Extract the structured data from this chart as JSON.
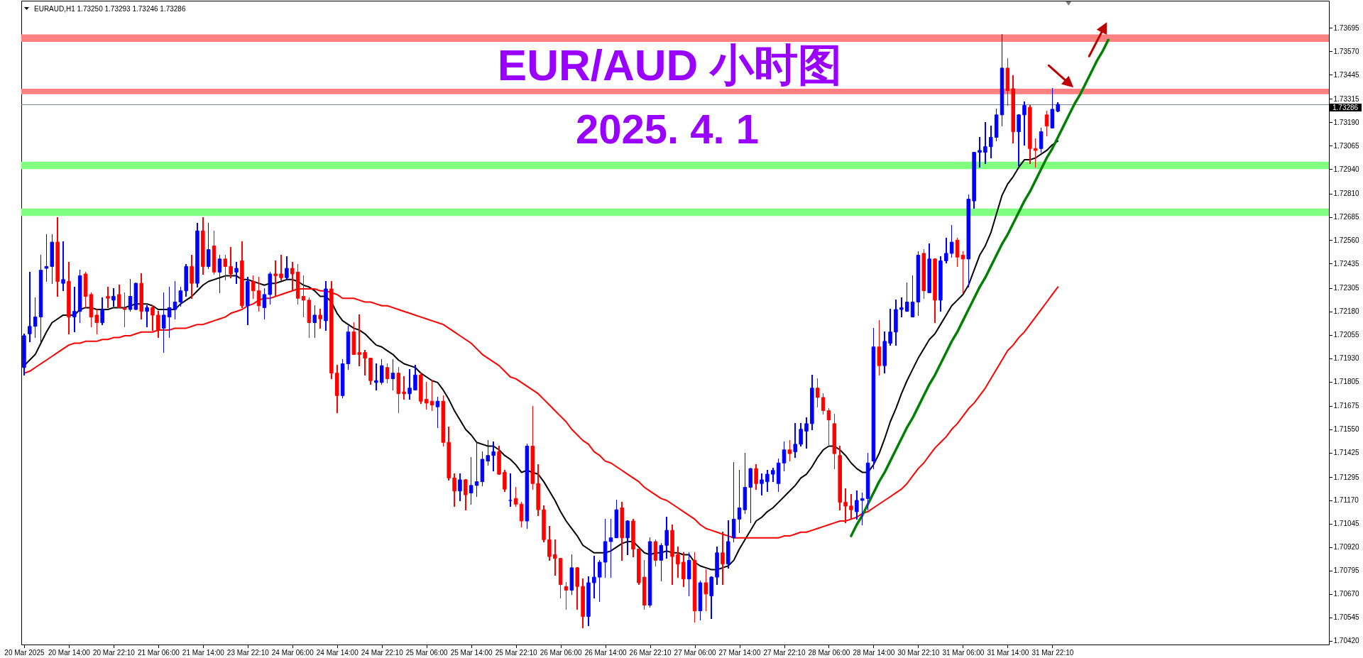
{
  "chart_data": {
    "type": "candlestick",
    "title": "EUR/AUD 小时图",
    "subtitle": "2025. 4. 1",
    "annotations": [
      "EURAUD,H1  1.73250 1.73293 1.73246 1.73286"
    ],
    "categories": [
      "20 Mar 2025",
      null,
      null,
      null,
      null,
      null,
      null,
      null,
      "20 Mar 14:00",
      null,
      null,
      null,
      null,
      null,
      null,
      null,
      "20 Mar 22:10",
      null,
      null,
      null,
      null,
      null,
      null,
      null,
      "21 Mar 06:00",
      null,
      null,
      null,
      null,
      null,
      null,
      null,
      "21 Mar 14:00",
      null,
      null,
      null,
      null,
      null,
      null,
      null,
      "23 Mar 22:10",
      null,
      null,
      null,
      null,
      null,
      null,
      null,
      "24 Mar 06:00",
      null,
      null,
      null,
      null,
      null,
      null,
      null,
      "24 Mar 14:00",
      null,
      null,
      null,
      null,
      null,
      null,
      null,
      "24 Mar 22:10",
      null,
      null,
      null,
      null,
      null,
      null,
      null,
      "25 Mar 06:00",
      null,
      null,
      null,
      null,
      null,
      null,
      null,
      "25 Mar 14:00",
      null,
      null,
      null,
      null,
      null,
      null,
      null,
      "25 Mar 22:10",
      null,
      null,
      null,
      null,
      null,
      null,
      null,
      "26 Mar 06:00",
      null,
      null,
      null,
      null,
      null,
      null,
      null,
      "26 Mar 14:00",
      null,
      null,
      null,
      null,
      null,
      null,
      null,
      "26 Mar 22:10",
      null,
      null,
      null,
      null,
      null,
      null,
      null,
      "27 Mar 06:00",
      null,
      null,
      null,
      null,
      null,
      null,
      null,
      "27 Mar 14:00",
      null,
      null,
      null,
      null,
      null,
      null,
      null,
      "27 Mar 22:10",
      null,
      null,
      null,
      null,
      null,
      null,
      null,
      "28 Mar 06:00",
      null,
      null,
      null,
      null,
      null,
      null,
      null,
      "28 Mar 14:00",
      null,
      null,
      null,
      null,
      null,
      null,
      null,
      "30 Mar 22:10",
      null,
      null,
      null,
      null,
      null,
      null,
      null,
      "31 Mar 06:00",
      null,
      null,
      null,
      null,
      null,
      null,
      null,
      "31 Mar 14:00",
      null,
      null,
      null,
      null,
      null,
      null,
      null,
      "31 Mar 22:10",
      null,
      null,
      null,
      null,
      null,
      null,
      null,
      null,
      null,
      null,
      null,
      null,
      null,
      null,
      null,
      null,
      null,
      null,
      null,
      null,
      null,
      null,
      null,
      null,
      null,
      null,
      null,
      null,
      null,
      null,
      null,
      null,
      null,
      null,
      null,
      null,
      null,
      null,
      null,
      null,
      null,
      null,
      null,
      null,
      null,
      null,
      null,
      null,
      null
    ],
    "ohlc": [
      [
        1.7188,
        1.7206,
        1.7184,
        1.7205
      ],
      [
        1.7206,
        1.7239,
        1.7202,
        1.721
      ],
      [
        1.721,
        1.7225,
        1.7204,
        1.7215
      ],
      [
        1.7215,
        1.7248,
        1.7201,
        1.724
      ],
      [
        1.7241,
        1.7259,
        1.7234,
        1.7242
      ],
      [
        1.7242,
        1.7259,
        1.7233,
        1.7255
      ],
      [
        1.7255,
        1.7268,
        1.7226,
        1.7234
      ],
      [
        1.7233,
        1.7255,
        1.7229,
        1.7235
      ],
      [
        1.7234,
        1.7244,
        1.7206,
        1.7215
      ],
      [
        1.7215,
        1.7231,
        1.7207,
        1.7218
      ],
      [
        1.7218,
        1.724,
        1.7212,
        1.7237
      ],
      [
        1.7238,
        1.7239,
        1.722,
        1.7226
      ],
      [
        1.7227,
        1.7228,
        1.721,
        1.7215
      ],
      [
        1.7216,
        1.7219,
        1.7206,
        1.7212
      ],
      [
        1.7212,
        1.7225,
        1.7211,
        1.7219
      ],
      [
        1.7226,
        1.7231,
        1.722,
        1.7225
      ],
      [
        1.7224,
        1.723,
        1.7221,
        1.7226
      ],
      [
        1.7227,
        1.7232,
        1.722,
        1.722
      ],
      [
        1.722,
        1.7228,
        1.721,
        1.7219
      ],
      [
        1.7219,
        1.7235,
        1.7218,
        1.7226
      ],
      [
        1.7219,
        1.7233,
        1.7219,
        1.7233
      ],
      [
        1.7233,
        1.7238,
        1.7214,
        1.7218
      ],
      [
        1.7218,
        1.7221,
        1.721,
        1.722
      ],
      [
        1.722,
        1.7221,
        1.7208,
        1.7216
      ],
      [
        1.7216,
        1.7218,
        1.7204,
        1.7208
      ],
      [
        1.7209,
        1.7228,
        1.7196,
        1.7216
      ],
      [
        1.7215,
        1.7231,
        1.7204,
        1.722
      ],
      [
        1.7219,
        1.7234,
        1.7214,
        1.7223
      ],
      [
        1.7223,
        1.7231,
        1.7221,
        1.7229
      ],
      [
        1.7229,
        1.7243,
        1.7226,
        1.7242
      ],
      [
        1.7242,
        1.7248,
        1.7225,
        1.7233
      ],
      [
        1.7233,
        1.7265,
        1.7231,
        1.7261
      ],
      [
        1.7261,
        1.7268,
        1.7238,
        1.7242
      ],
      [
        1.7242,
        1.7265,
        1.7241,
        1.7251
      ],
      [
        1.7253,
        1.7261,
        1.7238,
        1.7239
      ],
      [
        1.7239,
        1.7248,
        1.7228,
        1.7246
      ],
      [
        1.7246,
        1.7248,
        1.7235,
        1.7242
      ],
      [
        1.7242,
        1.7252,
        1.7236,
        1.7238
      ],
      [
        1.7239,
        1.7244,
        1.7233,
        1.7241
      ],
      [
        1.7245,
        1.7255,
        1.722,
        1.7221
      ],
      [
        1.7221,
        1.7236,
        1.7211,
        1.7234
      ],
      [
        1.7234,
        1.7237,
        1.7225,
        1.7229
      ],
      [
        1.7229,
        1.7236,
        1.7218,
        1.7221
      ],
      [
        1.722,
        1.723,
        1.7214,
        1.7227
      ],
      [
        1.7227,
        1.7239,
        1.7222,
        1.7238
      ],
      [
        1.7238,
        1.7245,
        1.7226,
        1.7237
      ],
      [
        1.7238,
        1.7248,
        1.7235,
        1.7236
      ],
      [
        1.7236,
        1.7247,
        1.7235,
        1.7241
      ],
      [
        1.7241,
        1.7244,
        1.7229,
        1.7238
      ],
      [
        1.7239,
        1.7243,
        1.7222,
        1.7225
      ],
      [
        1.7226,
        1.7237,
        1.7215,
        1.7224
      ],
      [
        1.7224,
        1.7225,
        1.7204,
        1.7212
      ],
      [
        1.7212,
        1.7221,
        1.7204,
        1.7216
      ],
      [
        1.7216,
        1.7219,
        1.7209,
        1.7214
      ],
      [
        1.7213,
        1.7234,
        1.7208,
        1.723
      ],
      [
        1.723,
        1.7234,
        1.7182,
        1.7185
      ],
      [
        1.7185,
        1.7189,
        1.7164,
        1.7173
      ],
      [
        1.7173,
        1.7192,
        1.7172,
        1.719
      ],
      [
        1.719,
        1.721,
        1.7187,
        1.7207
      ],
      [
        1.7207,
        1.7212,
        1.7195,
        1.7195
      ],
      [
        1.7196,
        1.7216,
        1.7189,
        1.7195
      ],
      [
        1.7196,
        1.7197,
        1.7184,
        1.7193
      ],
      [
        1.7193,
        1.7193,
        1.7179,
        1.7181
      ],
      [
        1.718,
        1.719,
        1.7176,
        1.7181
      ],
      [
        1.718,
        1.7192,
        1.7179,
        1.7189
      ],
      [
        1.7188,
        1.719,
        1.718,
        1.7182
      ],
      [
        1.7182,
        1.7192,
        1.7176,
        1.7185
      ],
      [
        1.7185,
        1.7188,
        1.7164,
        1.7174
      ],
      [
        1.7175,
        1.7183,
        1.7171,
        1.7174
      ],
      [
        1.7174,
        1.7187,
        1.7171,
        1.7177
      ],
      [
        1.7176,
        1.7189,
        1.7176,
        1.7184
      ],
      [
        1.7184,
        1.7185,
        1.7169,
        1.717
      ],
      [
        1.7171,
        1.718,
        1.7166,
        1.7169
      ],
      [
        1.717,
        1.7181,
        1.7165,
        1.7168
      ],
      [
        1.7167,
        1.7172,
        1.7156,
        1.717
      ],
      [
        1.717,
        1.7173,
        1.7146,
        1.7148
      ],
      [
        1.7148,
        1.7156,
        1.7128,
        1.7129
      ],
      [
        1.7129,
        1.7131,
        1.7114,
        1.7122
      ],
      [
        1.7122,
        1.7131,
        1.7117,
        1.7128
      ],
      [
        1.7128,
        1.7128,
        1.7112,
        1.712
      ],
      [
        1.7121,
        1.714,
        1.7115,
        1.7125
      ],
      [
        1.7125,
        1.7148,
        1.7119,
        1.7127
      ],
      [
        1.7127,
        1.7143,
        1.7125,
        1.7139
      ],
      [
        1.7138,
        1.7149,
        1.7136,
        1.7141
      ],
      [
        1.7141,
        1.7148,
        1.7133,
        1.7143
      ],
      [
        1.7143,
        1.7146,
        1.7131,
        1.7131
      ],
      [
        1.7132,
        1.7133,
        1.7122,
        1.7123
      ],
      [
        1.7117,
        1.7131,
        1.7114,
        1.7117
      ],
      [
        1.7118,
        1.7124,
        1.7114,
        1.7115
      ],
      [
        1.7115,
        1.7116,
        1.7103,
        1.7106
      ],
      [
        1.7106,
        1.7147,
        1.7102,
        1.7146
      ],
      [
        1.7146,
        1.7167,
        1.7123,
        1.7126
      ],
      [
        1.7126,
        1.7136,
        1.7109,
        1.7112
      ],
      [
        1.7112,
        1.7114,
        1.7095,
        1.7096
      ],
      [
        1.7096,
        1.7103,
        1.7085,
        1.7087
      ],
      [
        1.7088,
        1.7096,
        1.7077,
        1.7086
      ],
      [
        1.7086,
        1.7086,
        1.7065,
        1.7072
      ],
      [
        1.7071,
        1.7073,
        1.7059,
        1.7069
      ],
      [
        1.7069,
        1.7088,
        1.7067,
        1.7081
      ],
      [
        1.7081,
        1.7081,
        1.7059,
        1.7071
      ],
      [
        1.7071,
        1.7075,
        1.7049,
        1.7055
      ],
      [
        1.7055,
        1.7076,
        1.705,
        1.7073
      ],
      [
        1.7073,
        1.7087,
        1.7065,
        1.7076
      ],
      [
        1.7076,
        1.7085,
        1.7063,
        1.7084
      ],
      [
        1.7084,
        1.7107,
        1.7076,
        1.7095
      ],
      [
        1.7095,
        1.7107,
        1.7076,
        1.7097
      ],
      [
        1.7097,
        1.7117,
        1.7097,
        1.7112
      ],
      [
        1.7113,
        1.7116,
        1.7085,
        1.7097
      ],
      [
        1.7097,
        1.7106,
        1.7088,
        1.7106
      ],
      [
        1.7106,
        1.7107,
        1.7087,
        1.7091
      ],
      [
        1.7091,
        1.7091,
        1.7072,
        1.7073
      ],
      [
        1.7076,
        1.7085,
        1.7059,
        1.7061
      ],
      [
        1.7061,
        1.7097,
        1.706,
        1.7095
      ],
      [
        1.7095,
        1.7096,
        1.7082,
        1.7085
      ],
      [
        1.7085,
        1.7094,
        1.7074,
        1.7093
      ],
      [
        1.7093,
        1.7108,
        1.7086,
        1.7101
      ],
      [
        1.7101,
        1.7104,
        1.7072,
        1.7087
      ],
      [
        1.7088,
        1.7092,
        1.7076,
        1.7083
      ],
      [
        1.7084,
        1.7089,
        1.7071,
        1.7075
      ],
      [
        1.7075,
        1.7089,
        1.7066,
        1.7085
      ],
      [
        1.7085,
        1.7089,
        1.7052,
        1.7058
      ],
      [
        1.7058,
        1.7074,
        1.7053,
        1.7073
      ],
      [
        1.7073,
        1.708,
        1.7058,
        1.7067
      ],
      [
        1.7066,
        1.7076,
        1.7054,
        1.7076
      ],
      [
        1.7076,
        1.7092,
        1.7072,
        1.7089
      ],
      [
        1.7089,
        1.71,
        1.7072,
        1.7083
      ],
      [
        1.7083,
        1.7106,
        1.7081,
        1.7095
      ],
      [
        1.7097,
        1.7137,
        1.7095,
        1.7107
      ],
      [
        1.7107,
        1.7133,
        1.71,
        1.7113
      ],
      [
        1.7112,
        1.7142,
        1.711,
        1.7124
      ],
      [
        1.7124,
        1.7134,
        1.7105,
        1.7134
      ],
      [
        1.7134,
        1.7136,
        1.7123,
        1.7126
      ],
      [
        1.7126,
        1.7131,
        1.712,
        1.7128
      ],
      [
        1.7127,
        1.7133,
        1.7122,
        1.7131
      ],
      [
        1.7131,
        1.7134,
        1.7127,
        1.7133
      ],
      [
        1.7126,
        1.7139,
        1.7122,
        1.7137
      ],
      [
        1.7137,
        1.7148,
        1.7133,
        1.7144
      ],
      [
        1.7144,
        1.7149,
        1.7138,
        1.7142
      ],
      [
        1.7143,
        1.7158,
        1.714,
        1.7147
      ],
      [
        1.7147,
        1.7158,
        1.7146,
        1.7155
      ],
      [
        1.7154,
        1.7161,
        1.7145,
        1.7158
      ],
      [
        1.7158,
        1.7184,
        1.7155,
        1.7177
      ],
      [
        1.7177,
        1.7182,
        1.7167,
        1.7172
      ],
      [
        1.7172,
        1.7174,
        1.7163,
        1.7165
      ],
      [
        1.7165,
        1.7166,
        1.7147,
        1.716
      ],
      [
        1.7158,
        1.7163,
        1.7134,
        1.7142
      ],
      [
        1.7141,
        1.7146,
        1.7112,
        1.7116
      ],
      [
        1.7116,
        1.7123,
        1.7105,
        1.7114
      ],
      [
        1.7114,
        1.712,
        1.7107,
        1.7112
      ],
      [
        1.7111,
        1.7122,
        1.7107,
        1.7117
      ],
      [
        1.7117,
        1.7121,
        1.7104,
        1.7118
      ],
      [
        1.7118,
        1.7142,
        1.7112,
        1.7137
      ],
      [
        1.7138,
        1.7209,
        1.7134,
        1.7199
      ],
      [
        1.7199,
        1.7213,
        1.7184,
        1.7189
      ],
      [
        1.7189,
        1.7207,
        1.7185,
        1.7202
      ],
      [
        1.7201,
        1.7219,
        1.72,
        1.7207
      ],
      [
        1.7207,
        1.7224,
        1.72,
        1.7219
      ],
      [
        1.7219,
        1.7225,
        1.7215,
        1.722
      ],
      [
        1.7218,
        1.7233,
        1.7218,
        1.7223
      ],
      [
        1.7215,
        1.7237,
        1.7215,
        1.7223
      ],
      [
        1.7223,
        1.725,
        1.7216,
        1.7248
      ],
      [
        1.7249,
        1.7251,
        1.7225,
        1.7229
      ],
      [
        1.7228,
        1.7254,
        1.7228,
        1.7246
      ],
      [
        1.7246,
        1.7246,
        1.7212,
        1.7224
      ],
      [
        1.7224,
        1.7247,
        1.7218,
        1.7245
      ],
      [
        1.7245,
        1.7257,
        1.7244,
        1.7249
      ],
      [
        1.7249,
        1.7264,
        1.7247,
        1.7255
      ],
      [
        1.7256,
        1.7257,
        1.7242,
        1.7247
      ],
      [
        1.7248,
        1.725,
        1.7228,
        1.7246
      ],
      [
        1.7246,
        1.728,
        1.7231,
        1.7278
      ],
      [
        1.7277,
        1.7303,
        1.7273,
        1.7303
      ],
      [
        1.7303,
        1.7311,
        1.7295,
        1.7304
      ],
      [
        1.7303,
        1.7319,
        1.7297,
        1.7306
      ],
      [
        1.7306,
        1.7317,
        1.73,
        1.7311
      ],
      [
        1.7311,
        1.7326,
        1.7309,
        1.7323
      ],
      [
        1.7323,
        1.7366,
        1.7317,
        1.7348
      ],
      [
        1.7348,
        1.7353,
        1.7328,
        1.7336
      ],
      [
        1.7337,
        1.7344,
        1.7308,
        1.7314
      ],
      [
        1.7314,
        1.7323,
        1.7296,
        1.7323
      ],
      [
        1.7323,
        1.733,
        1.7307,
        1.7328
      ],
      [
        1.7327,
        1.7328,
        1.7297,
        1.7305
      ],
      [
        1.7305,
        1.731,
        1.7295,
        1.7304
      ],
      [
        1.7305,
        1.7316,
        1.7303,
        1.7314
      ],
      [
        1.7323,
        1.7325,
        1.7312,
        1.7317
      ],
      [
        1.7316,
        1.7337,
        1.7316,
        1.7326
      ],
      [
        1.7325,
        1.73293,
        1.73246,
        1.73286
      ],
      null,
      null,
      null,
      null,
      null,
      null,
      null,
      null,
      null,
      null,
      null,
      null,
      null,
      null,
      null,
      null,
      null,
      null,
      null,
      null,
      null,
      null,
      null,
      null,
      null,
      null,
      null,
      null,
      null,
      null,
      null,
      null,
      null,
      null,
      null,
      null,
      null,
      null,
      null,
      null,
      null,
      null,
      null,
      null,
      null,
      null,
      null,
      null
    ],
    "colors": [
      "#0000ff",
      "#0000ff",
      "#0000ff",
      "#0000ff",
      "#0000ff",
      "#0000ff",
      "#ff0000",
      "#0000ff",
      "#ff0000",
      "#0000ff",
      "#0000ff",
      "#ff0000",
      "#ff0000",
      "#ff0000",
      "#0000ff",
      "#ff0000",
      "#0000ff",
      "#ff0000",
      "#ff0000",
      "#0000ff",
      "#0000ff",
      "#ff0000",
      "#0000ff",
      "#ff0000",
      "#ff0000",
      "#0000ff",
      "#0000ff",
      "#0000ff",
      "#0000ff",
      "#0000ff",
      "#ff0000",
      "#0000ff",
      "#ff0000",
      "#0000ff",
      "#ff0000",
      "#0000ff",
      "#ff0000",
      "#ff0000",
      "#0000ff",
      "#ff0000",
      "#0000ff",
      "#ff0000",
      "#ff0000",
      "#0000ff",
      "#0000ff",
      "#ff0000",
      "#ff0000",
      "#0000ff",
      "#ff0000",
      "#ff0000",
      "#ff0000",
      "#ff0000",
      "#0000ff",
      "#ff0000",
      "#0000ff",
      "#ff0000",
      "#ff0000",
      "#0000ff",
      "#0000ff",
      "#ff0000",
      "#ff0000",
      "#ff0000",
      "#ff0000",
      "#0000ff",
      "#0000ff",
      "#ff0000",
      "#0000ff",
      "#ff0000",
      "#ff0000",
      "#0000ff",
      "#0000ff",
      "#ff0000",
      "#ff0000",
      "#ff0000",
      "#0000ff",
      "#ff0000",
      "#ff0000",
      "#ff0000",
      "#0000ff",
      "#ff0000",
      "#0000ff",
      "#0000ff",
      "#0000ff",
      "#0000ff",
      "#0000ff",
      "#ff0000",
      "#ff0000",
      "#0000ff",
      "#ff0000",
      "#ff0000",
      "#0000ff",
      "#ff0000",
      "#ff0000",
      "#ff0000",
      "#ff0000",
      "#ff0000",
      "#ff0000",
      "#ff0000",
      "#0000ff",
      "#ff0000",
      "#ff0000",
      "#0000ff",
      "#0000ff",
      "#0000ff",
      "#0000ff",
      "#0000ff",
      "#0000ff",
      "#ff0000",
      "#0000ff",
      "#ff0000",
      "#ff0000",
      "#ff0000",
      "#0000ff",
      "#ff0000",
      "#0000ff",
      "#0000ff",
      "#ff0000",
      "#ff0000",
      "#ff0000",
      "#0000ff",
      "#ff0000",
      "#0000ff",
      "#ff0000",
      "#0000ff",
      "#0000ff",
      "#ff0000",
      "#0000ff",
      "#0000ff",
      "#0000ff",
      "#0000ff",
      "#0000ff",
      "#ff0000",
      "#0000ff",
      "#0000ff",
      "#0000ff",
      "#0000ff",
      "#0000ff",
      "#ff0000",
      "#0000ff",
      "#0000ff",
      "#0000ff",
      "#0000ff",
      "#ff0000",
      "#ff0000",
      "#ff0000",
      "#ff0000",
      "#ff0000",
      "#ff0000",
      "#ff0000",
      "#0000ff",
      "#0000ff",
      "#0000ff",
      "#0000ff",
      "#ff0000",
      "#0000ff",
      "#0000ff",
      "#0000ff",
      "#0000ff",
      "#0000ff",
      "#0000ff",
      "#0000ff",
      "#ff0000",
      "#0000ff",
      "#ff0000",
      "#0000ff",
      "#0000ff",
      "#0000ff",
      "#ff0000",
      "#ff0000",
      "#0000ff",
      "#0000ff",
      "#0000ff",
      "#0000ff",
      "#0000ff",
      "#0000ff",
      "#0000ff",
      "#ff0000",
      "#ff0000",
      "#0000ff",
      "#0000ff",
      "#ff0000",
      "#ff0000",
      "#0000ff",
      "#ff0000",
      "#0000ff",
      "#0000ff",
      null,
      null,
      null,
      null,
      null,
      null,
      null,
      null,
      null,
      null,
      null,
      null,
      null,
      null,
      null,
      null,
      null,
      null,
      null,
      null,
      null,
      null,
      null,
      null,
      null,
      null,
      null,
      null,
      null,
      null,
      null,
      null,
      null,
      null,
      null,
      null,
      null,
      null,
      null,
      null,
      null,
      null,
      null,
      null,
      null,
      null,
      null,
      null
    ],
    "series": [
      {
        "type": "line",
        "color": "#000000",
        "values": [
          1.7189,
          1.7192,
          1.7195,
          1.7201,
          1.7207,
          1.7212,
          1.7214,
          1.7216,
          1.7216,
          1.7216,
          1.7219,
          1.722,
          1.722,
          1.7219,
          1.7219,
          1.7219,
          1.722,
          1.722,
          1.722,
          1.7221,
          1.7222,
          1.7222,
          1.7222,
          1.7221,
          1.7219,
          1.7219,
          1.7219,
          1.7219,
          1.7222,
          1.7224,
          1.7226,
          1.7229,
          1.7232,
          1.7234,
          1.7235,
          1.7236,
          1.7237,
          1.7237,
          1.7237,
          1.7235,
          1.7235,
          1.7234,
          1.7233,
          1.7232,
          1.7233,
          1.7233,
          1.7234,
          1.7235,
          1.7235,
          1.7234,
          1.7232,
          1.7231,
          1.7229,
          1.7226,
          1.7226,
          1.7223,
          1.7217,
          1.7213,
          1.7211,
          1.7209,
          1.7208,
          1.7206,
          1.7203,
          1.72,
          1.7199,
          1.7197,
          1.7195,
          1.7192,
          1.719,
          1.7189,
          1.7188,
          1.7185,
          1.7183,
          1.7181,
          1.718,
          1.7176,
          1.7171,
          1.7165,
          1.716,
          1.7155,
          1.7152,
          1.7148,
          1.7147,
          1.7146,
          1.7146,
          1.7144,
          1.7141,
          1.7139,
          1.7136,
          1.7132,
          1.7133,
          1.7132,
          1.7131,
          1.7127,
          1.7122,
          1.7117,
          1.7111,
          1.7106,
          1.7102,
          1.7098,
          1.7093,
          1.7091,
          1.7089,
          1.7089,
          1.7089,
          1.709,
          1.7092,
          1.7094,
          1.7095,
          1.7095,
          1.7092,
          1.7089,
          1.7088,
          1.7089,
          1.7089,
          1.709,
          1.7089,
          1.7089,
          1.7088,
          1.7088,
          1.7084,
          1.7082,
          1.7081,
          1.708,
          1.708,
          1.7081,
          1.7082,
          1.7085,
          1.7091,
          1.7096,
          1.7101,
          1.7106,
          1.7108,
          1.7111,
          1.7113,
          1.7116,
          1.7119,
          1.7122,
          1.7125,
          1.7129,
          1.7131,
          1.7135,
          1.714,
          1.7144,
          1.7146,
          1.7146,
          1.7144,
          1.7141,
          1.7137,
          1.7134,
          1.7132,
          1.7132,
          1.7136,
          1.7142,
          1.715,
          1.7159,
          1.7166,
          1.7174,
          1.7181,
          1.7187,
          1.7193,
          1.7198,
          1.7203,
          1.7206,
          1.7211,
          1.7216,
          1.7221,
          1.7224,
          1.7227,
          1.7232,
          1.724,
          1.7248,
          1.7253,
          1.726,
          1.727,
          1.728,
          1.7286,
          1.729,
          1.7295,
          1.7299,
          1.7299,
          1.73,
          1.7302,
          1.7304,
          1.7307,
          1.7309,
          null,
          null,
          null,
          null,
          null,
          null,
          null,
          null,
          null,
          null,
          null,
          null,
          null,
          null,
          null,
          null,
          null,
          null,
          null,
          null,
          null,
          null,
          null,
          null,
          null,
          null,
          null,
          null,
          null,
          null,
          null,
          null,
          null,
          null,
          null,
          null,
          null,
          null,
          null,
          null,
          null,
          null,
          null,
          null,
          null,
          null,
          null,
          null
        ]
      },
      {
        "type": "line",
        "color": "#ff0000",
        "values": [
          1.7185,
          1.7186,
          1.7188,
          1.719,
          1.7192,
          1.7194,
          1.7196,
          1.7198,
          1.72,
          1.7201,
          1.7201,
          1.7202,
          1.7202,
          1.7202,
          1.7203,
          1.7203,
          1.7204,
          1.7204,
          1.7205,
          1.7205,
          1.7206,
          1.7207,
          1.7207,
          1.7207,
          1.7208,
          1.7208,
          1.7208,
          1.7209,
          1.7209,
          1.7209,
          1.721,
          1.7211,
          1.7211,
          1.7212,
          1.7213,
          1.7214,
          1.7215,
          1.7217,
          1.7218,
          1.7219,
          1.7221,
          1.7222,
          1.7224,
          1.7225,
          1.7225,
          1.7226,
          1.7227,
          1.7228,
          1.7229,
          1.723,
          1.723,
          1.723,
          1.723,
          1.7229,
          1.7229,
          1.7228,
          1.7227,
          1.7225,
          1.7225,
          1.7225,
          1.7224,
          1.7223,
          1.7223,
          1.7222,
          1.7221,
          1.7221,
          1.722,
          1.7219,
          1.7218,
          1.7217,
          1.7216,
          1.7215,
          1.7214,
          1.7213,
          1.7212,
          1.7211,
          1.7209,
          1.7207,
          1.7205,
          1.7203,
          1.7201,
          1.7198,
          1.7195,
          1.7193,
          1.7191,
          1.7189,
          1.7186,
          1.7183,
          1.7182,
          1.718,
          1.7178,
          1.7176,
          1.7174,
          1.7171,
          1.7168,
          1.7165,
          1.7162,
          1.7159,
          1.7155,
          1.7152,
          1.7149,
          1.7147,
          1.7143,
          1.7141,
          1.7138,
          1.7137,
          1.7135,
          1.7133,
          1.7131,
          1.7129,
          1.7127,
          1.7124,
          1.7122,
          1.712,
          1.7118,
          1.7117,
          1.7115,
          1.7113,
          1.7111,
          1.7109,
          1.7107,
          1.7104,
          1.7102,
          1.7101,
          1.71,
          1.7099,
          1.7098,
          1.7097,
          1.7097,
          1.7097,
          1.7097,
          1.7097,
          1.7097,
          1.7097,
          1.7097,
          1.7097,
          1.7098,
          1.7098,
          1.7099,
          1.71,
          1.71,
          1.7101,
          1.7102,
          1.7103,
          1.7104,
          1.7105,
          1.7106,
          1.7106,
          1.7107,
          1.7108,
          1.711,
          1.7111,
          1.7113,
          1.7115,
          1.7117,
          1.7119,
          1.7121,
          1.7123,
          1.7126,
          1.713,
          1.7134,
          1.7137,
          1.7141,
          1.7145,
          1.7148,
          1.7151,
          1.7155,
          1.7158,
          1.7162,
          1.7166,
          1.7169,
          1.7173,
          1.7177,
          1.7182,
          1.7187,
          1.7192,
          1.7197,
          1.72,
          1.7204,
          1.7207,
          1.7211,
          1.7215,
          1.7219,
          1.7223,
          1.7227,
          1.7231,
          null,
          null,
          null,
          null,
          null,
          null,
          null,
          null,
          null,
          null,
          null,
          null,
          null,
          null,
          null,
          null,
          null,
          null,
          null,
          null,
          null,
          null,
          null,
          null,
          null,
          null,
          null,
          null,
          null,
          null,
          null,
          null,
          null,
          null,
          null,
          null,
          null,
          null,
          null,
          null,
          null,
          null,
          null,
          null,
          null,
          null,
          null,
          null
        ]
      },
      {
        "type": "line",
        "color": "#008000",
        "values": [
          null,
          null,
          null,
          null,
          null,
          null,
          null,
          null,
          null,
          null,
          null,
          null,
          null,
          null,
          null,
          null,
          null,
          null,
          null,
          null,
          null,
          null,
          null,
          null,
          null,
          null,
          null,
          null,
          null,
          null,
          null,
          null,
          null,
          null,
          null,
          null,
          null,
          null,
          null,
          null,
          null,
          null,
          null,
          null,
          null,
          null,
          null,
          null,
          null,
          null,
          null,
          null,
          null,
          null,
          null,
          null,
          null,
          null,
          null,
          null,
          null,
          null,
          null,
          null,
          null,
          null,
          null,
          null,
          null,
          null,
          null,
          null,
          null,
          null,
          null,
          null,
          null,
          null,
          null,
          null,
          null,
          null,
          null,
          null,
          null,
          null,
          null,
          null,
          null,
          null,
          null,
          null,
          null,
          null,
          null,
          null,
          null,
          null,
          null,
          null,
          null,
          null,
          null,
          null,
          null,
          null,
          null,
          null,
          null,
          null,
          null,
          null,
          null,
          null,
          null,
          null,
          null,
          null,
          null,
          null,
          null,
          null,
          null,
          null,
          null,
          null,
          null,
          null,
          null,
          null,
          null,
          null,
          null,
          null,
          null,
          null,
          null,
          null,
          null,
          null,
          null,
          null,
          null,
          null,
          null,
          null,
          null,
          null,
          1.7098,
          1.7104,
          1.7109,
          1.7115,
          1.7121,
          1.7127,
          1.7132,
          1.7138,
          1.7144,
          1.715,
          1.7156,
          1.7161,
          1.7167,
          1.7173,
          1.7179,
          1.7184,
          1.719,
          1.7196,
          1.7202,
          1.7207,
          1.7213,
          1.7219,
          1.7225,
          1.7231,
          1.7236,
          1.7242,
          1.7248,
          1.7254,
          1.7259,
          1.7265,
          1.7271,
          1.7277,
          1.7282,
          1.7288,
          1.7294,
          1.73,
          1.7305,
          1.7311,
          1.7317,
          1.7323,
          1.7329,
          1.7334,
          1.734,
          1.7346,
          1.7352,
          1.7357,
          1.7363,
          null,
          null,
          null,
          null,
          null,
          null,
          null,
          null,
          null,
          null,
          null,
          null,
          null,
          null,
          null,
          null,
          null,
          null,
          null,
          null,
          null,
          null,
          null,
          null,
          null,
          null,
          null,
          null,
          null,
          null,
          null,
          null,
          null,
          null,
          null,
          null,
          null,
          null,
          null
        ]
      }
    ],
    "ylim": [
      1.704,
      1.7384
    ],
    "yticks": [
      {
        "value": 1.7042,
        "label": "1.70420"
      },
      1.70545,
      {
        "value": 1.7067,
        "label": "1.70670"
      },
      1.70795,
      {
        "value": 1.7092,
        "label": "1.70920"
      },
      1.71045,
      {
        "value": 1.7117,
        "label": "1.71170"
      },
      1.71295,
      1.71425,
      {
        "value": 1.7155,
        "label": "1.71550"
      },
      1.71675,
      1.71805,
      {
        "value": 1.7193,
        "label": "1.71930"
      },
      1.72055,
      {
        "value": 1.7218,
        "label": "1.72180"
      },
      1.72305,
      1.72435,
      {
        "value": 1.7256,
        "label": "1.72560"
      },
      1.72685,
      {
        "value": 1.7281,
        "label": "1.72810"
      },
      {
        "value": 1.7294,
        "label": "1.72940"
      },
      1.73065,
      {
        "value": 1.7319,
        "label": "1.73190"
      },
      1.73315,
      1.73445,
      {
        "value": 1.7357,
        "label": "1.73570"
      },
      1.73695
    ],
    "bands": [
      {
        "axis": "y",
        "from": 1.7362,
        "to": 1.7366,
        "color": "#ff8080"
      },
      {
        "axis": "y",
        "from": 1.7334,
        "to": 1.7337,
        "color": "#ff8080"
      },
      {
        "axis": "y",
        "from": 1.7294,
        "to": 1.7298,
        "color": "#80ff80"
      },
      {
        "axis": "y",
        "from": 1.7269,
        "to": 1.7273,
        "color": "#80ff80"
      }
    ],
    "ref_lines": [
      {
        "axis": "y",
        "value": 1.73286,
        "label": "1.73286",
        "color": "#778899"
      }
    ]
  }
}
